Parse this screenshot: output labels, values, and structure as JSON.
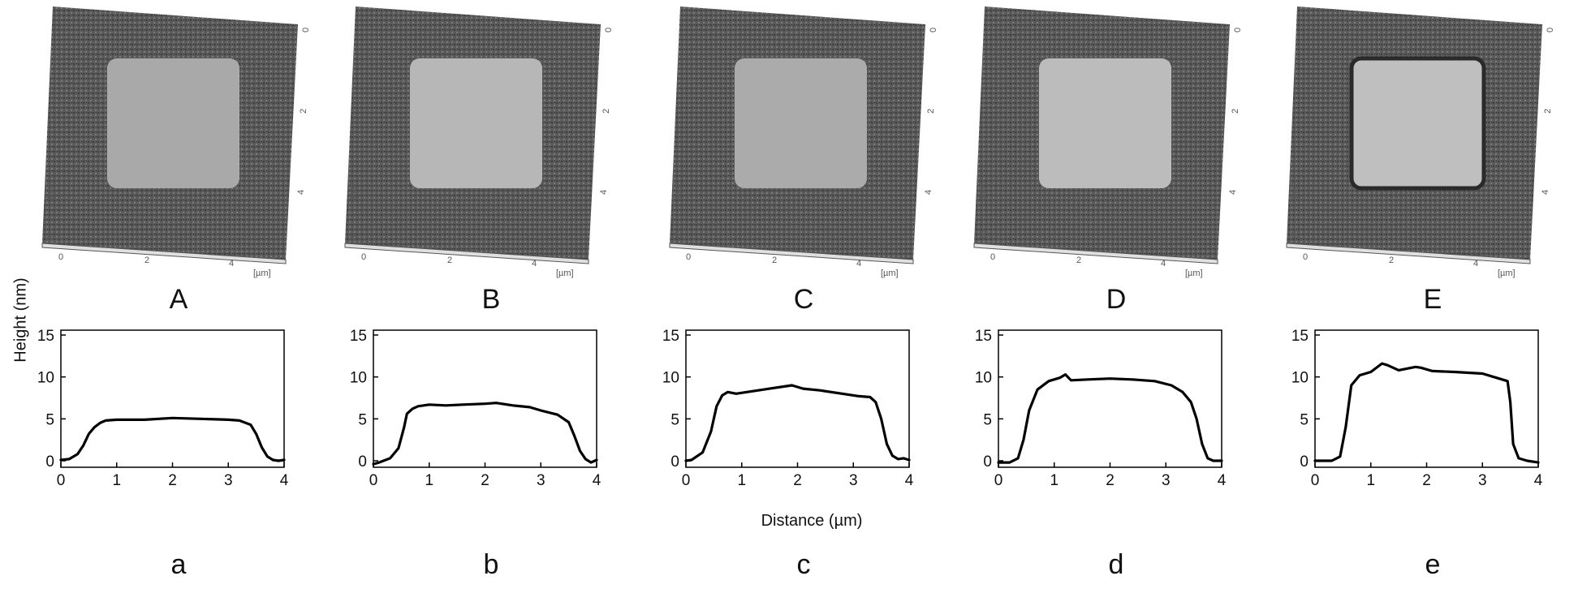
{
  "chart_data": [
    {
      "type": "line",
      "panel_label": "a",
      "image_label": "A",
      "xlabel": "",
      "ylabel": "Height (nm)",
      "xlim": [
        0,
        4
      ],
      "ylim": [
        0,
        15
      ],
      "xticks": [
        "0",
        "1",
        "2",
        "3",
        "4"
      ],
      "yticks": [
        "0",
        "5",
        "10",
        "15"
      ],
      "afm_axis": {
        "z_unit": "[nm]",
        "xy_unit": "[µm]",
        "z_tick": "5",
        "x_ticks": [
          "0",
          "2",
          "4"
        ],
        "y_ticks": [
          "0",
          "2",
          "4"
        ]
      },
      "series": [
        {
          "x": [
            0,
            0.15,
            0.3,
            0.4,
            0.5,
            0.6,
            0.7,
            0.8,
            1.0,
            1.5,
            2.0,
            2.5,
            3.0,
            3.2,
            3.4,
            3.5,
            3.6,
            3.7,
            3.8,
            3.9,
            4.0
          ],
          "y": [
            0.1,
            0.2,
            0.8,
            1.8,
            3.2,
            4.0,
            4.5,
            4.8,
            4.9,
            4.9,
            5.1,
            5.0,
            4.9,
            4.8,
            4.3,
            3.2,
            1.6,
            0.5,
            0.1,
            0.0,
            0.1
          ]
        }
      ]
    },
    {
      "type": "line",
      "panel_label": "b",
      "image_label": "B",
      "xlabel": "",
      "ylabel": "",
      "xlim": [
        0,
        4
      ],
      "ylim": [
        0,
        15
      ],
      "xticks": [
        "0",
        "1",
        "2",
        "3",
        "4"
      ],
      "yticks": [
        "0",
        "5",
        "10",
        "15"
      ],
      "afm_axis": {
        "z_unit": "[nm]",
        "xy_unit": "[µm]",
        "z_tick": "5",
        "x_ticks": [
          "0",
          "2",
          "4"
        ],
        "y_ticks": [
          "0",
          "2",
          "4"
        ]
      },
      "series": [
        {
          "x": [
            0,
            0.1,
            0.3,
            0.45,
            0.55,
            0.6,
            0.7,
            0.8,
            1.0,
            1.3,
            1.6,
            2.0,
            2.2,
            2.5,
            2.8,
            3.0,
            3.3,
            3.5,
            3.6,
            3.7,
            3.8,
            3.9,
            4.0
          ],
          "y": [
            -0.4,
            -0.2,
            0.3,
            1.5,
            4.0,
            5.6,
            6.2,
            6.5,
            6.7,
            6.6,
            6.7,
            6.8,
            6.9,
            6.6,
            6.4,
            6.0,
            5.5,
            4.6,
            3.0,
            1.2,
            0.2,
            -0.2,
            0.1
          ]
        }
      ]
    },
    {
      "type": "line",
      "panel_label": "c",
      "image_label": "C",
      "xlabel": "Distance (µm)",
      "ylabel": "",
      "xlim": [
        0,
        4
      ],
      "ylim": [
        0,
        15
      ],
      "xticks": [
        "0",
        "1",
        "2",
        "3",
        "4"
      ],
      "yticks": [
        "0",
        "5",
        "10",
        "15"
      ],
      "afm_axis": {
        "z_unit": "[nm]",
        "xy_unit": "[µm]",
        "z_tick": "10",
        "x_ticks": [
          "0",
          "2",
          "4"
        ],
        "y_ticks": [
          "0",
          "2",
          "4"
        ]
      },
      "series": [
        {
          "x": [
            0,
            0.1,
            0.3,
            0.45,
            0.55,
            0.65,
            0.75,
            0.9,
            1.2,
            1.5,
            1.8,
            1.9,
            2.1,
            2.4,
            2.8,
            3.1,
            3.3,
            3.4,
            3.5,
            3.6,
            3.7,
            3.8,
            3.9,
            4.0
          ],
          "y": [
            0.0,
            0.1,
            1.0,
            3.5,
            6.5,
            7.8,
            8.2,
            8.0,
            8.3,
            8.6,
            8.9,
            9.0,
            8.6,
            8.4,
            8.0,
            7.7,
            7.6,
            7.0,
            5.0,
            2.0,
            0.6,
            0.2,
            0.3,
            0.1
          ]
        }
      ]
    },
    {
      "type": "line",
      "panel_label": "d",
      "image_label": "D",
      "xlabel": "",
      "ylabel": "",
      "xlim": [
        0,
        4
      ],
      "ylim": [
        0,
        15
      ],
      "xticks": [
        "0",
        "1",
        "2",
        "3",
        "4"
      ],
      "yticks": [
        "0",
        "5",
        "10",
        "15"
      ],
      "afm_axis": {
        "z_unit": "[nm]",
        "xy_unit": "[µm]",
        "z_tick": "15",
        "x_ticks": [
          "0",
          "2",
          "4"
        ],
        "y_ticks": [
          "0",
          "2",
          "4"
        ]
      },
      "series": [
        {
          "x": [
            0,
            0.2,
            0.35,
            0.45,
            0.55,
            0.7,
            0.9,
            1.1,
            1.2,
            1.3,
            1.6,
            2.0,
            2.4,
            2.8,
            3.1,
            3.3,
            3.45,
            3.55,
            3.65,
            3.75,
            3.85,
            4.0
          ],
          "y": [
            -0.2,
            -0.2,
            0.3,
            2.5,
            6.0,
            8.5,
            9.5,
            9.9,
            10.3,
            9.6,
            9.7,
            9.8,
            9.7,
            9.5,
            9.0,
            8.2,
            7.0,
            5.0,
            2.0,
            0.3,
            0.0,
            0.0
          ]
        }
      ]
    },
    {
      "type": "line",
      "panel_label": "e",
      "image_label": "E",
      "xlabel": "",
      "ylabel": "",
      "xlim": [
        0,
        4
      ],
      "ylim": [
        0,
        15
      ],
      "xticks": [
        "0",
        "1",
        "2",
        "3",
        "4"
      ],
      "yticks": [
        "0",
        "5",
        "10",
        "15"
      ],
      "afm_axis": {
        "z_unit": "[nm]",
        "xy_unit": "[µm]",
        "z_tick": "15",
        "x_ticks": [
          "0",
          "2",
          "4"
        ],
        "y_ticks": [
          "0",
          "2",
          "4"
        ]
      },
      "series": [
        {
          "x": [
            0,
            0.3,
            0.45,
            0.55,
            0.65,
            0.8,
            1.0,
            1.2,
            1.3,
            1.5,
            1.8,
            1.9,
            2.1,
            2.5,
            3.0,
            3.3,
            3.45,
            3.5,
            3.55,
            3.65,
            3.8,
            4.0
          ],
          "y": [
            0.0,
            0.0,
            0.5,
            4.0,
            9.0,
            10.2,
            10.6,
            11.6,
            11.4,
            10.8,
            11.2,
            11.1,
            10.7,
            10.6,
            10.4,
            9.8,
            9.5,
            7.0,
            2.0,
            0.3,
            0.0,
            -0.2
          ]
        }
      ]
    }
  ]
}
